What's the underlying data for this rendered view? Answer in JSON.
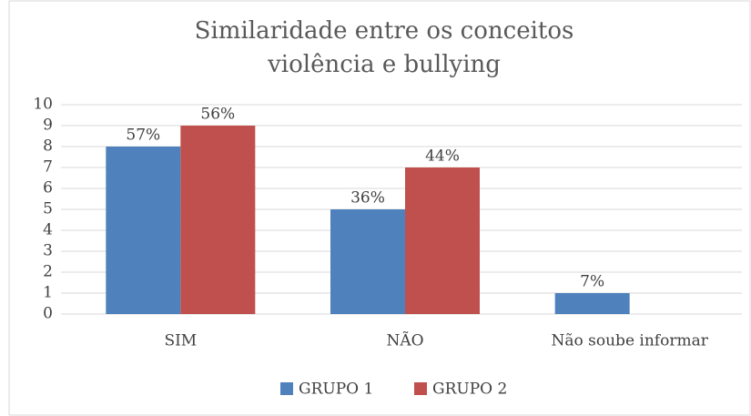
{
  "chart_data": {
    "type": "bar",
    "title": [
      "Similaridade entre os conceitos",
      "violência e bullying"
    ],
    "categories": [
      "SIM",
      "NÃO",
      "Não soube informar"
    ],
    "series": [
      {
        "name": "GRUPO 1",
        "color": "#4f81bd",
        "values": [
          8,
          5,
          1
        ],
        "value_labels": [
          "57%",
          "36%",
          "7%"
        ]
      },
      {
        "name": "GRUPO 2",
        "color": "#c0504d",
        "values": [
          9,
          7,
          0
        ],
        "value_labels": [
          "56%",
          "44%",
          null
        ]
      }
    ],
    "ylim": [
      0,
      10
    ],
    "yticks": [
      0,
      1,
      2,
      3,
      4,
      5,
      6,
      7,
      8,
      9,
      10
    ],
    "grid": true,
    "legend": "bottom"
  }
}
